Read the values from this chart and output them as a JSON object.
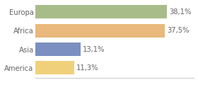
{
  "categories": [
    "Europa",
    "Africa",
    "Asia",
    "America"
  ],
  "values": [
    38.1,
    37.5,
    13.1,
    11.3
  ],
  "labels": [
    "38,1%",
    "37,5%",
    "13,1%",
    "11,3%"
  ],
  "bar_colors": [
    "#a8bc8a",
    "#e8b87c",
    "#7b8fc0",
    "#f0d07a"
  ],
  "background_color": "#ffffff",
  "border_color": "#cccccc",
  "xlim": [
    0,
    46
  ],
  "label_fontsize": 7.2,
  "category_fontsize": 7.2,
  "bar_height": 0.72,
  "text_color": "#666666"
}
